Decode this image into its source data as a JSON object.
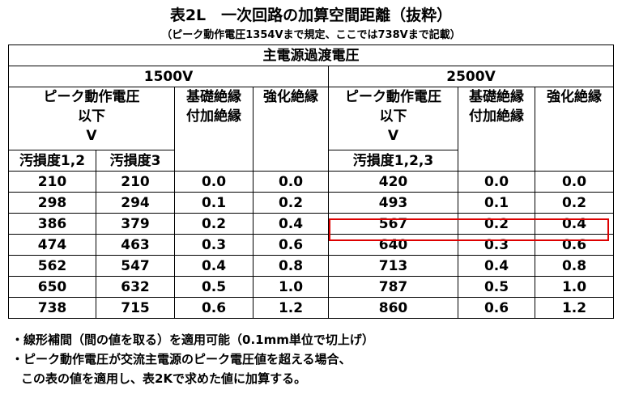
{
  "title": "表2L　一次回路の加算空間距離（抜粋）",
  "subtitle": "（ピーク動作電圧1354Vまで規定、ここでは738Vまで記載）",
  "table": {
    "caption": "主電源過渡電圧",
    "groups": [
      "1500V",
      "2500V"
    ],
    "headers": {
      "peak": "ピーク動作電圧",
      "below": "以下",
      "unit": "V",
      "basic": "基礎絶縁",
      "supplementary": "付加絶縁",
      "reinforced": "強化絶縁",
      "pollution12": "汚損度1,2",
      "pollution3": "汚損度3",
      "pollution123": "汚損度1,2,3"
    },
    "rows": [
      [
        "210",
        "210",
        "0.0",
        "0.0",
        "420",
        "0.0",
        "0.0"
      ],
      [
        "298",
        "294",
        "0.1",
        "0.2",
        "493",
        "0.1",
        "0.2"
      ],
      [
        "386",
        "379",
        "0.2",
        "0.4",
        "567",
        "0.2",
        "0.4"
      ],
      [
        "474",
        "463",
        "0.3",
        "0.6",
        "640",
        "0.3",
        "0.6"
      ],
      [
        "562",
        "547",
        "0.4",
        "0.8",
        "713",
        "0.4",
        "0.8"
      ],
      [
        "650",
        "632",
        "0.5",
        "1.0",
        "787",
        "0.5",
        "1.0"
      ],
      [
        "738",
        "715",
        "0.6",
        "1.2",
        "860",
        "0.6",
        "1.2"
      ]
    ]
  },
  "notes": [
    "・線形補間（間の値を取る）を適用可能（0.1mm単位で切上げ）",
    "・ピーク動作電圧が交流主電源のピーク電圧値を超える場合、",
    "この表の値を適用し、表2Kで求めた値に加算する。"
  ]
}
